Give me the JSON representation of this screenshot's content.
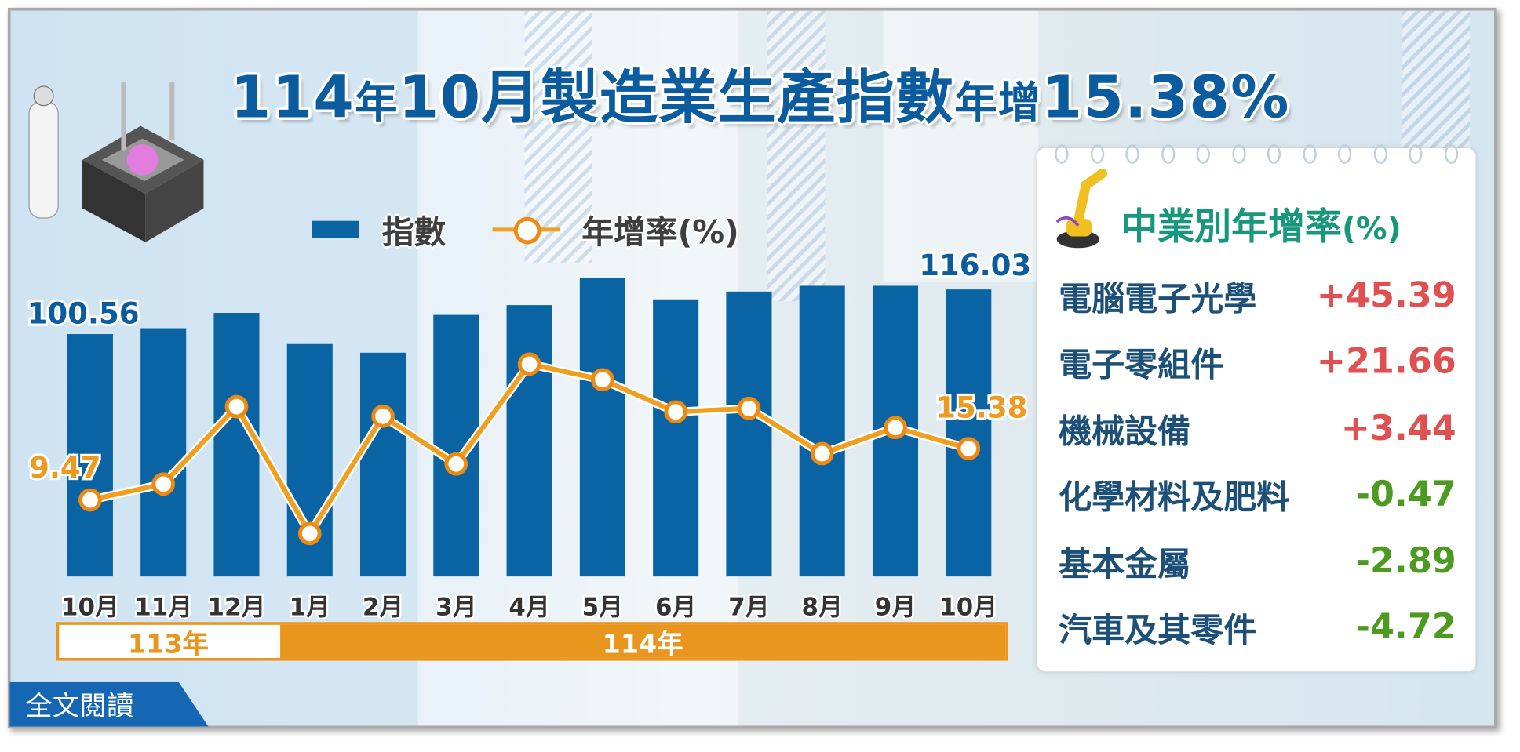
{
  "title": {
    "p1": "114",
    "p2": "年",
    "p3": "10月製造業生產指數",
    "p4": "年增",
    "p5": "15.38%"
  },
  "legend": {
    "index": "指數",
    "growth": "年增率(%)"
  },
  "chart_data": {
    "type": "bar+line",
    "categories": [
      "10月",
      "11月",
      "12月",
      "1月",
      "2月",
      "3月",
      "4月",
      "5月",
      "6月",
      "7月",
      "8月",
      "9月",
      "10月"
    ],
    "year_groups": [
      {
        "label": "113年",
        "span": 3
      },
      {
        "label": "114年",
        "span": 10
      }
    ],
    "series": [
      {
        "name": "指數",
        "type": "bar",
        "color": "#0a63a3",
        "values": [
          100.56,
          102.6,
          107.9,
          97.1,
          94.1,
          107.2,
          110.6,
          120.0,
          112.6,
          115.3,
          117.3,
          117.3,
          116.03
        ]
      },
      {
        "name": "年增率(%)",
        "type": "line",
        "color": "#f0a020",
        "values": [
          9.47,
          11.3,
          20.2,
          5.6,
          19.1,
          13.6,
          25.1,
          23.3,
          19.6,
          20.0,
          14.8,
          17.8,
          15.38
        ]
      }
    ],
    "data_labels": {
      "first_index": "100.56",
      "last_index": "116.03",
      "first_growth": "9.47",
      "last_growth": "15.38"
    }
  },
  "panel": {
    "title": "中業別年增率",
    "title_unit": "(%)",
    "rows": [
      {
        "name": "電腦電子光學",
        "value": "+45.39"
      },
      {
        "name": "電子零組件",
        "value": "+21.66"
      },
      {
        "name": "機械設備",
        "value": "+3.44"
      },
      {
        "name": "化學材料及肥料",
        "value": "-0.47"
      },
      {
        "name": "基本金屬",
        "value": "-2.89"
      },
      {
        "name": "汽車及其零件",
        "value": "-4.72"
      }
    ],
    "colors": {
      "positive": "#e05050",
      "negative": "#4c9a1f"
    }
  },
  "read_more": "全文閱讀"
}
